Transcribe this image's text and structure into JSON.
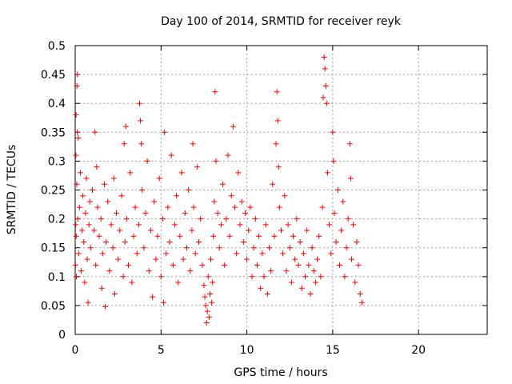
{
  "chart_data": {
    "type": "scatter",
    "title": "Day 100 of 2014, SRMTID for receiver reyk",
    "xlabel": "GPS time / hours",
    "ylabel": "SRMTID / TECUs",
    "xlim": [
      0,
      24
    ],
    "ylim": [
      0,
      0.5
    ],
    "grid": true,
    "x_ticks": [
      0,
      5,
      10,
      15,
      20
    ],
    "x_tick_labels": [
      "0",
      "5",
      "10",
      "15",
      "20"
    ],
    "y_ticks": [
      0,
      0.05,
      0.1,
      0.15,
      0.2,
      0.25,
      0.3,
      0.35,
      0.4,
      0.45,
      0.5
    ],
    "y_tick_labels": [
      "0",
      "0.05",
      "0.1",
      "0.15",
      "0.2",
      "0.25",
      "0.3",
      "0.35",
      "0.4",
      "0.45",
      "0.5"
    ],
    "marker": "plus",
    "color": "#ff0000",
    "series": [
      {
        "name": "reyk",
        "points": [
          [
            0.02,
            0.12
          ],
          [
            0.03,
            0.19
          ],
          [
            0.04,
            0.31
          ],
          [
            0.05,
            0.38
          ],
          [
            0.06,
            0.17
          ],
          [
            0.07,
            0.1
          ],
          [
            0.09,
            0.26
          ],
          [
            0.1,
            0.43
          ],
          [
            0.11,
            0.45
          ],
          [
            0.12,
            0.35
          ],
          [
            0.15,
            0.2
          ],
          [
            0.18,
            0.34
          ],
          [
            0.2,
            0.14
          ],
          [
            0.25,
            0.22
          ],
          [
            0.3,
            0.28
          ],
          [
            0.35,
            0.11
          ],
          [
            0.4,
            0.18
          ],
          [
            0.45,
            0.24
          ],
          [
            0.5,
            0.16
          ],
          [
            0.55,
            0.09
          ],
          [
            0.6,
            0.21
          ],
          [
            0.65,
            0.27
          ],
          [
            0.7,
            0.13
          ],
          [
            0.75,
            0.055
          ],
          [
            0.8,
            0.19
          ],
          [
            0.85,
            0.23
          ],
          [
            0.9,
            0.15
          ],
          [
            1.0,
            0.25
          ],
          [
            1.1,
            0.18
          ],
          [
            1.15,
            0.35
          ],
          [
            1.2,
            0.12
          ],
          [
            1.25,
            0.29
          ],
          [
            1.3,
            0.22
          ],
          [
            1.4,
            0.17
          ],
          [
            1.5,
            0.2
          ],
          [
            1.55,
            0.08
          ],
          [
            1.6,
            0.14
          ],
          [
            1.7,
            0.26
          ],
          [
            1.75,
            0.048
          ],
          [
            1.8,
            0.16
          ],
          [
            1.9,
            0.23
          ],
          [
            2.0,
            0.11
          ],
          [
            2.1,
            0.19
          ],
          [
            2.2,
            0.15
          ],
          [
            2.25,
            0.27
          ],
          [
            2.3,
            0.07
          ],
          [
            2.4,
            0.21
          ],
          [
            2.5,
            0.13
          ],
          [
            2.6,
            0.18
          ],
          [
            2.7,
            0.24
          ],
          [
            2.8,
            0.1
          ],
          [
            2.85,
            0.33
          ],
          [
            2.9,
            0.16
          ],
          [
            2.95,
            0.36
          ],
          [
            3.0,
            0.2
          ],
          [
            3.1,
            0.12
          ],
          [
            3.2,
            0.28
          ],
          [
            3.3,
            0.09
          ],
          [
            3.4,
            0.17
          ],
          [
            3.5,
            0.22
          ],
          [
            3.6,
            0.14
          ],
          [
            3.7,
            0.19
          ],
          [
            3.75,
            0.4
          ],
          [
            3.8,
            0.37
          ],
          [
            3.85,
            0.33
          ],
          [
            3.9,
            0.25
          ],
          [
            4.0,
            0.15
          ],
          [
            4.1,
            0.21
          ],
          [
            4.2,
            0.3
          ],
          [
            4.3,
            0.11
          ],
          [
            4.4,
            0.18
          ],
          [
            4.5,
            0.065
          ],
          [
            4.6,
            0.23
          ],
          [
            4.7,
            0.13
          ],
          [
            4.8,
            0.17
          ],
          [
            4.9,
            0.27
          ],
          [
            5.0,
            0.1
          ],
          [
            5.1,
            0.2
          ],
          [
            5.15,
            0.055
          ],
          [
            5.2,
            0.35
          ],
          [
            5.3,
            0.14
          ],
          [
            5.4,
            0.22
          ],
          [
            5.5,
            0.16
          ],
          [
            5.6,
            0.31
          ],
          [
            5.7,
            0.12
          ],
          [
            5.8,
            0.19
          ],
          [
            5.9,
            0.24
          ],
          [
            6.0,
            0.09
          ],
          [
            6.1,
            0.17
          ],
          [
            6.2,
            0.28
          ],
          [
            6.3,
            0.13
          ],
          [
            6.4,
            0.21
          ],
          [
            6.5,
            0.15
          ],
          [
            6.6,
            0.25
          ],
          [
            6.7,
            0.11
          ],
          [
            6.8,
            0.18
          ],
          [
            6.85,
            0.33
          ],
          [
            6.9,
            0.22
          ],
          [
            7.0,
            0.14
          ],
          [
            7.1,
            0.29
          ],
          [
            7.2,
            0.16
          ],
          [
            7.3,
            0.2
          ],
          [
            7.4,
            0.12
          ],
          [
            7.5,
            0.085
          ],
          [
            7.55,
            0.065
          ],
          [
            7.6,
            0.05
          ],
          [
            7.65,
            0.02
          ],
          [
            7.7,
            0.04
          ],
          [
            7.75,
            0.1
          ],
          [
            7.8,
            0.03
          ],
          [
            7.85,
            0.07
          ],
          [
            7.9,
            0.13
          ],
          [
            7.95,
            0.055
          ],
          [
            8.0,
            0.09
          ],
          [
            8.05,
            0.17
          ],
          [
            8.1,
            0.23
          ],
          [
            8.15,
            0.42
          ],
          [
            8.2,
            0.3
          ],
          [
            8.3,
            0.21
          ],
          [
            8.4,
            0.15
          ],
          [
            8.5,
            0.19
          ],
          [
            8.6,
            0.26
          ],
          [
            8.7,
            0.12
          ],
          [
            8.8,
            0.2
          ],
          [
            8.9,
            0.31
          ],
          [
            9.0,
            0.17
          ],
          [
            9.1,
            0.24
          ],
          [
            9.2,
            0.36
          ],
          [
            9.3,
            0.22
          ],
          [
            9.4,
            0.14
          ],
          [
            9.5,
            0.28
          ],
          [
            9.6,
            0.19
          ],
          [
            9.7,
            0.23
          ],
          [
            9.8,
            0.16
          ],
          [
            9.9,
            0.21
          ],
          [
            10.0,
            0.13
          ],
          [
            10.1,
            0.18
          ],
          [
            10.2,
            0.22
          ],
          [
            10.3,
            0.1
          ],
          [
            10.4,
            0.15
          ],
          [
            10.5,
            0.2
          ],
          [
            10.6,
            0.12
          ],
          [
            10.7,
            0.17
          ],
          [
            10.8,
            0.08
          ],
          [
            10.9,
            0.14
          ],
          [
            11.0,
            0.1
          ],
          [
            11.1,
            0.19
          ],
          [
            11.2,
            0.07
          ],
          [
            11.3,
            0.15
          ],
          [
            11.4,
            0.11
          ],
          [
            11.5,
            0.26
          ],
          [
            11.6,
            0.17
          ],
          [
            11.7,
            0.33
          ],
          [
            11.75,
            0.42
          ],
          [
            11.8,
            0.37
          ],
          [
            11.85,
            0.29
          ],
          [
            11.9,
            0.22
          ],
          [
            12.0,
            0.18
          ],
          [
            12.1,
            0.14
          ],
          [
            12.2,
            0.24
          ],
          [
            12.3,
            0.11
          ],
          [
            12.4,
            0.19
          ],
          [
            12.5,
            0.15
          ],
          [
            12.6,
            0.09
          ],
          [
            12.7,
            0.17
          ],
          [
            12.8,
            0.13
          ],
          [
            12.9,
            0.2
          ],
          [
            13.0,
            0.12
          ],
          [
            13.1,
            0.16
          ],
          [
            13.2,
            0.08
          ],
          [
            13.3,
            0.14
          ],
          [
            13.4,
            0.1
          ],
          [
            13.5,
            0.18
          ],
          [
            13.6,
            0.12
          ],
          [
            13.7,
            0.07
          ],
          [
            13.8,
            0.15
          ],
          [
            13.9,
            0.11
          ],
          [
            14.0,
            0.09
          ],
          [
            14.1,
            0.13
          ],
          [
            14.2,
            0.17
          ],
          [
            14.3,
            0.1
          ],
          [
            14.4,
            0.22
          ],
          [
            14.45,
            0.41
          ],
          [
            14.5,
            0.48
          ],
          [
            14.55,
            0.46
          ],
          [
            14.6,
            0.43
          ],
          [
            14.65,
            0.4
          ],
          [
            14.7,
            0.28
          ],
          [
            14.8,
            0.19
          ],
          [
            14.9,
            0.14
          ],
          [
            15.0,
            0.35
          ],
          [
            15.05,
            0.3
          ],
          [
            15.1,
            0.21
          ],
          [
            15.2,
            0.16
          ],
          [
            15.3,
            0.25
          ],
          [
            15.4,
            0.12
          ],
          [
            15.5,
            0.18
          ],
          [
            15.6,
            0.23
          ],
          [
            15.7,
            0.1
          ],
          [
            15.8,
            0.15
          ],
          [
            15.9,
            0.2
          ],
          [
            16.0,
            0.33
          ],
          [
            16.05,
            0.27
          ],
          [
            16.1,
            0.13
          ],
          [
            16.2,
            0.19
          ],
          [
            16.3,
            0.09
          ],
          [
            16.4,
            0.16
          ],
          [
            16.5,
            0.12
          ],
          [
            16.6,
            0.07
          ],
          [
            16.7,
            0.055
          ]
        ]
      }
    ]
  }
}
